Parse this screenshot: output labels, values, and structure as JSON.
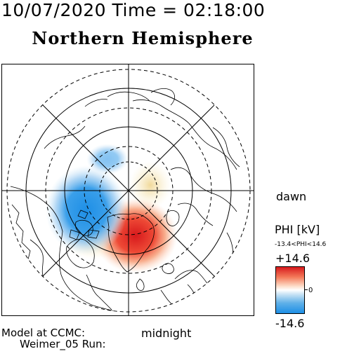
{
  "header": {
    "datetime": "10/07/2020 Time = 02:18:00"
  },
  "map": {
    "title": "Northern Hemisphere",
    "projection": "polar-stereographic",
    "pole": "north",
    "outer_colatitude_deg": 40,
    "latitude_circles_solid_deg": [
      50,
      60,
      70,
      80
    ],
    "latitude_circles_dashed_deg": [
      55,
      65,
      75
    ],
    "meridian_step_deg": 45,
    "background": "#ffffff",
    "line_color": "#000000"
  },
  "labels": {
    "dawn": "dawn",
    "midnight": "midnight",
    "model_line1": "Model at CCMC:",
    "model_line2": "Weimer_05 Run:"
  },
  "colorbar": {
    "title": "PHI [kV]",
    "range_text": "-13.4<PHI<14.6",
    "max": "+14.6",
    "min": "-14.6",
    "zero": "0",
    "positive_color": "#d7191c",
    "negative_color": "#1e8fe6",
    "neutral_color": "#ffffff"
  },
  "potential_cells": {
    "max_kv": 14.6,
    "min_kv": -13.4
  }
}
